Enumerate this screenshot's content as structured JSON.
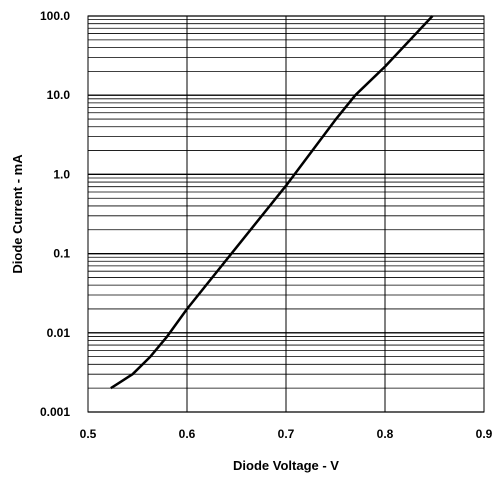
{
  "chart_data": {
    "type": "line",
    "title": "",
    "xlabel": "Diode Voltage - V",
    "ylabel": "Diode Current - mA",
    "xlim": [
      0.5,
      0.9
    ],
    "ylim": [
      0.001,
      100
    ],
    "yscale": "log",
    "grid": true,
    "x_tick_labels": [
      "0.5",
      "0.6",
      "0.7",
      "0.8",
      "0.9"
    ],
    "y_tick_labels": [
      "0.001",
      "0.01",
      "0.1",
      "1.0",
      "10.0",
      "100.0"
    ],
    "series": [
      {
        "color": "#000000",
        "x": [
          0.523,
          0.545,
          0.563,
          0.58,
          0.6,
          0.65,
          0.7,
          0.75,
          0.77,
          0.8,
          0.848
        ],
        "y": [
          0.002,
          0.003,
          0.005,
          0.009,
          0.02,
          0.12,
          0.72,
          4.9,
          10.0,
          23.0,
          100.0
        ]
      }
    ]
  }
}
